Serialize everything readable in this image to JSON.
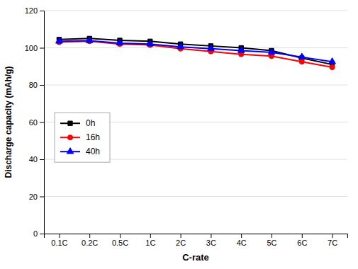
{
  "chart_data": {
    "type": "line",
    "xlabel": "C-rate",
    "ylabel": "Discharge capacity (mAh/g)",
    "categories": [
      "0.1C",
      "0.2C",
      "0.5C",
      "1C",
      "2C",
      "3C",
      "4C",
      "5C",
      "6C",
      "7C"
    ],
    "series": [
      {
        "name": "0h",
        "color": "#000000",
        "marker": "square",
        "values": [
          104.5,
          105.0,
          104.0,
          103.5,
          102.0,
          101.0,
          100.0,
          98.5,
          94.5,
          91.0
        ]
      },
      {
        "name": "16h",
        "color": "#ff0000",
        "marker": "circle",
        "values": [
          103.0,
          103.5,
          102.0,
          101.5,
          99.5,
          98.0,
          96.5,
          95.5,
          92.5,
          89.5
        ]
      },
      {
        "name": "40h",
        "color": "#0000ff",
        "marker": "triangle",
        "values": [
          103.5,
          103.8,
          102.5,
          102.0,
          100.5,
          99.5,
          98.5,
          97.5,
          95.0,
          92.5
        ]
      }
    ],
    "ylim": [
      0,
      120
    ],
    "yticks": [
      0,
      20,
      40,
      60,
      80,
      100,
      120
    ],
    "grid": true,
    "legend": "lower left"
  }
}
